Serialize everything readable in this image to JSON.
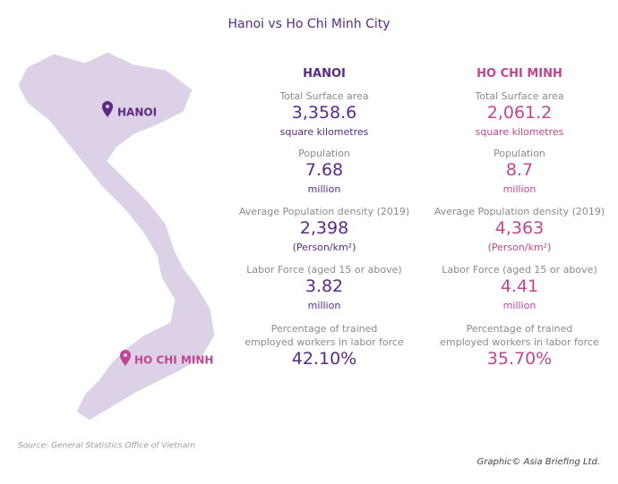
{
  "header": {
    "title": "Hanoi vs Ho Chi Minh City"
  },
  "map": {
    "labels": [
      "HANOI",
      "HO CHI MINH"
    ]
  },
  "columns": [
    {
      "name": "HANOI",
      "stats": [
        {
          "label": [
            "Total Surface area"
          ],
          "value": "3,358.6",
          "unit": "square kilometres"
        },
        {
          "label": [
            "Population"
          ],
          "value": "7.68",
          "unit": "million"
        },
        {
          "label": [
            "Average Population density (2019)"
          ],
          "value": "2,398",
          "unit": "(Person/km²)"
        },
        {
          "label": [
            "Labor Force (aged 15 or above)"
          ],
          "value": "3.82",
          "unit": "million"
        },
        {
          "label": [
            "Percentage of trained",
            "employed workers in labor force"
          ],
          "value": "42.10%"
        }
      ]
    },
    {
      "name": "HO CHI MINH",
      "stats": [
        {
          "label": [
            "Total Surface area"
          ],
          "value": "2,061.2",
          "unit": "square kilometres"
        },
        {
          "label": [
            "Population"
          ],
          "value": "8.7",
          "unit": "million"
        },
        {
          "label": [
            "Average Population density (2019)"
          ],
          "value": "4,363",
          "unit": "(Person/km²)"
        },
        {
          "label": [
            "Labor Force (aged 15 or above)"
          ],
          "value": "4.41",
          "unit": "million"
        },
        {
          "label": [
            "Percentage of trained",
            "employed workers in labor force"
          ],
          "value": "35.70%"
        }
      ]
    }
  ],
  "footer": {
    "source": "Source: General Statistics Office of Vietnam",
    "credit": "Graphic© Asia Briefing Ltd."
  }
}
